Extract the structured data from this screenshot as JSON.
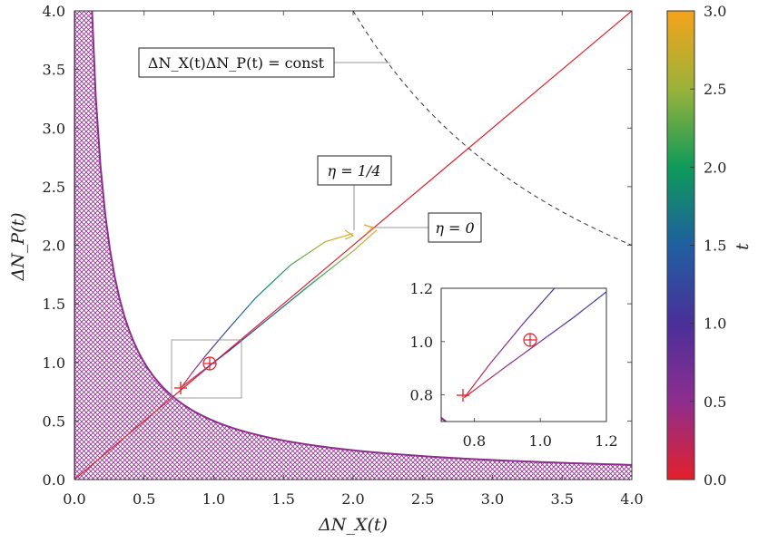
{
  "chart_data": {
    "type": "line",
    "xlabel": "ΔN_X(t)",
    "ylabel": "ΔN_P(t)",
    "xlim": [
      0,
      4
    ],
    "ylim": [
      0,
      4
    ],
    "xticks": [
      "0.0",
      "0.5",
      "1.0",
      "1.5",
      "2.0",
      "2.5",
      "3.0",
      "3.5",
      "4.0"
    ],
    "yticks": [
      "0.0",
      "0.5",
      "1.0",
      "1.5",
      "2.0",
      "2.5",
      "3.0",
      "3.5",
      "4.0"
    ],
    "forbidden_region": {
      "boundary": "xy = 0.5",
      "fill": "crosshatch",
      "color": "#8e2d8e"
    },
    "series": [
      {
        "key": "diagonal",
        "color": "#e0202a",
        "x": [
          0,
          4
        ],
        "y": [
          0,
          4
        ]
      },
      {
        "key": "eta_0",
        "x": [
          0.77,
          0.9,
          1.1,
          1.4,
          1.7,
          2.0,
          2.17
        ],
        "y": [
          0.79,
          0.91,
          1.09,
          1.38,
          1.67,
          1.95,
          2.13
        ]
      },
      {
        "key": "eta_1_4",
        "x": [
          0.77,
          0.85,
          0.95,
          1.1,
          1.3,
          1.55,
          1.8,
          2.0
        ],
        "y": [
          0.79,
          0.92,
          1.07,
          1.28,
          1.55,
          1.83,
          2.03,
          2.1
        ]
      },
      {
        "key": "const_hyperbola",
        "style": "dashed",
        "color": "#333333",
        "x": [
          2.0,
          2.3,
          2.6,
          2.83,
          3.2,
          3.6,
          4.0
        ],
        "y": [
          4.0,
          3.48,
          3.08,
          2.83,
          2.5,
          2.22,
          2.0
        ]
      }
    ],
    "markers": [
      {
        "type": "plus",
        "x": 0.77,
        "y": 0.79,
        "color": "#e0202a"
      },
      {
        "type": "circle-plus",
        "x": 0.97,
        "y": 1.0,
        "color": "#e0202a"
      }
    ],
    "annotations": {
      "const_label": "ΔN_X(t)ΔN_P(t) = const",
      "eta_quarter": "η = 1/4",
      "eta_zero": "η = 0"
    },
    "inset": {
      "xlim": [
        0.7,
        1.2
      ],
      "ylim": [
        0.7,
        1.2
      ],
      "xticks": [
        "0.8",
        "1.0",
        "1.2"
      ],
      "yticks": [
        "0.8",
        "1.0",
        "1.2"
      ]
    },
    "colorbar": {
      "label": "t",
      "range": [
        0.0,
        3.0
      ],
      "ticks": [
        "0.0",
        "0.5",
        "1.0",
        "1.5",
        "2.0",
        "2.5",
        "3.0"
      ],
      "colors": [
        "#e3202b",
        "#8e2d8e",
        "#4a2f9a",
        "#1f5fa0",
        "#0f9a5a",
        "#9ab33a",
        "#f5a21b"
      ]
    }
  }
}
